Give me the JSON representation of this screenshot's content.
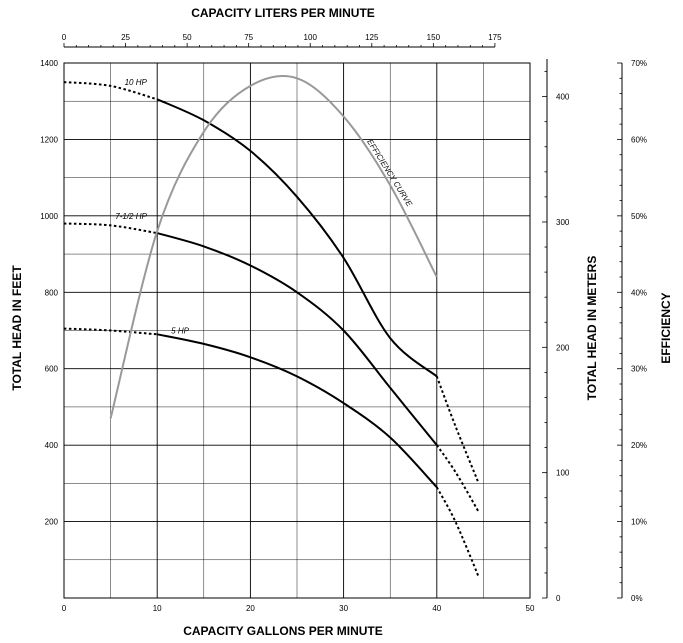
{
  "chart_data": {
    "type": "line",
    "title": "",
    "xlabel": "CAPACITY GALLONS PER MINUTE",
    "x2label": "CAPACITY LITERS PER MINUTE",
    "ylabel": "TOTAL HEAD IN FEET",
    "y2label": "TOTAL HEAD IN METERS",
    "y3label": "EFFICIENCY",
    "xlim": [
      0,
      50
    ],
    "ylim": [
      0,
      1400
    ],
    "x_ticks": [
      "0",
      "10",
      "20",
      "30",
      "40",
      "50"
    ],
    "y_ticks": [
      "200",
      "400",
      "600",
      "800",
      "1000",
      "1200",
      "1400"
    ],
    "x2_ticks": [
      "0",
      "25",
      "50",
      "75",
      "100",
      "125",
      "150",
      "175"
    ],
    "y2_ticks": [
      "0",
      "100",
      "200",
      "300",
      "400"
    ],
    "y3_ticks": [
      "0%",
      "10%",
      "20%",
      "30%",
      "40%",
      "50%",
      "60%",
      "70%"
    ],
    "grid": true,
    "series": [
      {
        "name": "10 HP",
        "x": [
          0,
          5,
          10,
          15,
          20,
          25,
          30,
          35,
          40
        ],
        "y": [
          1350,
          1340,
          1305,
          1250,
          1170,
          1050,
          890,
          680,
          580
        ],
        "x_dotted": [
          0,
          10
        ],
        "y_dotted_start": 1350,
        "extension_x": [
          40,
          42,
          44.5
        ],
        "extension_y": [
          580,
          450,
          300
        ]
      },
      {
        "name": "7-1/2 HP",
        "x": [
          0,
          5,
          10,
          15,
          20,
          25,
          30,
          35,
          40
        ],
        "y": [
          980,
          975,
          955,
          920,
          870,
          800,
          700,
          550,
          400
        ],
        "extension_x": [
          40,
          42,
          44.5
        ],
        "extension_y": [
          400,
          330,
          225
        ]
      },
      {
        "name": "5 HP",
        "x": [
          0,
          5,
          10,
          15,
          20,
          25,
          30,
          35,
          40
        ],
        "y": [
          705,
          700,
          690,
          665,
          630,
          580,
          510,
          420,
          290
        ],
        "extension_x": [
          40,
          42,
          44.5
        ],
        "extension_y": [
          290,
          200,
          55
        ]
      },
      {
        "name": "EFFICIENCY CURVE",
        "x": [
          5,
          10,
          15,
          20,
          25,
          30,
          35,
          40
        ],
        "y": [
          23.5,
          48,
          61,
          67,
          68,
          63,
          54,
          42
        ]
      }
    ],
    "solid_start_x": [
      10,
      10,
      10
    ],
    "label_positions": {
      "10 HP": [
        6.5,
        1350
      ],
      "7-1/2 HP": [
        5.5,
        1000
      ],
      "5 HP": [
        11.5,
        700
      ],
      "EFFICIENCY CURVE": [
        32.5,
        1195
      ]
    }
  }
}
